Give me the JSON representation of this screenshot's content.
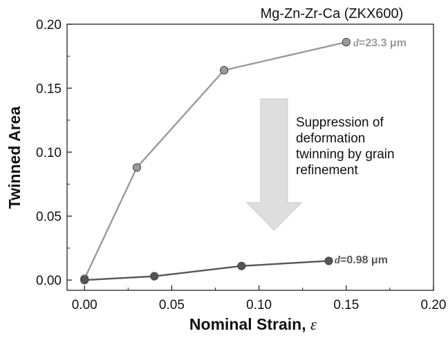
{
  "chart_data": {
    "type": "line",
    "title": "Mg-Zn-Zr-Ca (ZKX600)",
    "xlabel": "Nominal Strain, ",
    "xlabel_symbol": "ε",
    "ylabel": "Twinned Area",
    "xlim": [
      -0.01,
      0.2
    ],
    "ylim": [
      -0.008,
      0.2
    ],
    "x_ticks": [
      "0.00",
      "0.05",
      "0.10",
      "0.15",
      "0.20"
    ],
    "y_ticks": [
      "0.00",
      "0.05",
      "0.10",
      "0.15",
      "0.20"
    ],
    "grid": false,
    "series": [
      {
        "label_prefix": "d",
        "label_value": "=23.3 μm",
        "color": "#9a9a9a",
        "x": [
          0.0,
          0.03,
          0.08,
          0.15
        ],
        "y": [
          0.001,
          0.088,
          0.164,
          0.186
        ]
      },
      {
        "label_prefix": "d",
        "label_value": "=0.98 μm",
        "color": "#555555",
        "x": [
          0.0,
          0.04,
          0.09,
          0.14
        ],
        "y": [
          0.0,
          0.003,
          0.011,
          0.015
        ]
      }
    ],
    "annotation": {
      "lines": [
        "Suppression of",
        "deformation",
        "twinning by grain",
        "refinement"
      ],
      "arrow_color": "#dedede"
    }
  }
}
